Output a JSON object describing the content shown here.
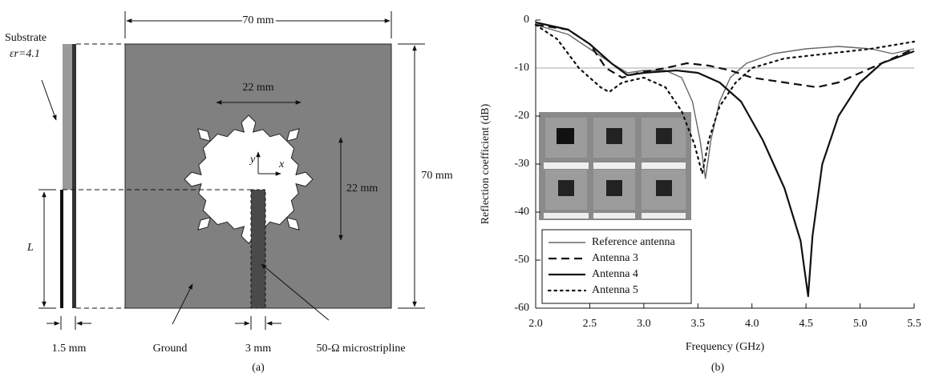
{
  "panel_a": {
    "width_label": "70 mm",
    "height_label": "70 mm",
    "patch_width_label": "22 mm",
    "patch_height_label": "22 mm",
    "substrate_label": "Substrate",
    "permittivity_label": "εr=4.1",
    "length_label": "L",
    "thickness_label": "1.5 mm",
    "ground_label": "Ground",
    "feed_width_label": "3 mm",
    "feed_label": "50-Ω microstripline",
    "y_axis_label": "y",
    "x_axis_label": "x",
    "caption": "(a)"
  },
  "chart_data": {
    "type": "line",
    "caption": "(b)",
    "x_label": "Frequency (GHz)",
    "y_label": "Reflection coefficient (dB)",
    "xlim": [
      2.0,
      5.5
    ],
    "ylim": [
      -60,
      0
    ],
    "xticks": [
      {
        "value": 2.0,
        "label": "2.0"
      },
      {
        "value": 2.5,
        "label": "2.5"
      },
      {
        "value": 3.0,
        "label": "3.0"
      },
      {
        "value": 3.5,
        "label": "3.5"
      },
      {
        "value": 4.0,
        "label": "4.0"
      },
      {
        "value": 4.5,
        "label": "4.5"
      },
      {
        "value": 5.0,
        "label": "5.0"
      },
      {
        "value": 5.5,
        "label": "5.5"
      }
    ],
    "yticks": [
      0,
      -10,
      -20,
      -30,
      -40,
      -50,
      -60
    ],
    "reference_line": -10,
    "legend": "lower left",
    "series": [
      {
        "name": "Reference antenna",
        "color": "#666666",
        "style": "solid",
        "width": 1.4,
        "x": [
          2.0,
          2.3,
          2.5,
          2.7,
          2.85,
          3.0,
          3.2,
          3.35,
          3.45,
          3.52,
          3.57,
          3.62,
          3.7,
          3.8,
          3.95,
          4.2,
          4.5,
          4.8,
          5.1,
          5.3,
          5.5
        ],
        "values": [
          -1,
          -3,
          -6,
          -9,
          -11,
          -10.5,
          -10.5,
          -12,
          -17,
          -25,
          -33,
          -25,
          -17,
          -12,
          -9,
          -7,
          -6,
          -5.5,
          -6,
          -7,
          -6
        ]
      },
      {
        "name": "Antenna 3",
        "color": "#111111",
        "style": "dashed",
        "width": 2.2,
        "x": [
          2.0,
          2.3,
          2.5,
          2.65,
          2.8,
          2.95,
          3.2,
          3.4,
          3.6,
          3.8,
          4.0,
          4.3,
          4.6,
          4.8,
          5.1,
          5.4,
          5.5
        ],
        "values": [
          -1,
          -2,
          -5,
          -10,
          -12,
          -11,
          -10,
          -9,
          -9.5,
          -10.5,
          -12,
          -13,
          -14,
          -13,
          -10,
          -7,
          -6
        ]
      },
      {
        "name": "Antenna 4",
        "color": "#111111",
        "style": "solid",
        "width": 2.2,
        "x": [
          2.0,
          2.3,
          2.5,
          2.7,
          2.85,
          3.0,
          3.3,
          3.5,
          3.7,
          3.9,
          4.1,
          4.3,
          4.45,
          4.48,
          4.52,
          4.56,
          4.65,
          4.8,
          5.0,
          5.2,
          5.5
        ],
        "values": [
          -0.5,
          -2,
          -5,
          -9,
          -11.5,
          -11,
          -10.5,
          -11,
          -13,
          -17,
          -25,
          -35,
          -46,
          -51,
          -57.5,
          -45,
          -30,
          -20,
          -13,
          -9,
          -6.5
        ]
      },
      {
        "name": "Antenna 5",
        "color": "#111111",
        "style": "dotted",
        "width": 2.2,
        "x": [
          2.0,
          2.2,
          2.4,
          2.6,
          2.68,
          2.8,
          3.0,
          3.2,
          3.35,
          3.47,
          3.54,
          3.6,
          3.7,
          3.85,
          4.0,
          4.3,
          4.7,
          5.1,
          5.5
        ],
        "values": [
          -1,
          -4,
          -10,
          -14,
          -15,
          -13,
          -12,
          -14,
          -19,
          -26,
          -32,
          -25,
          -18,
          -13,
          -10,
          -8,
          -7,
          -6,
          -4.5
        ]
      }
    ]
  }
}
